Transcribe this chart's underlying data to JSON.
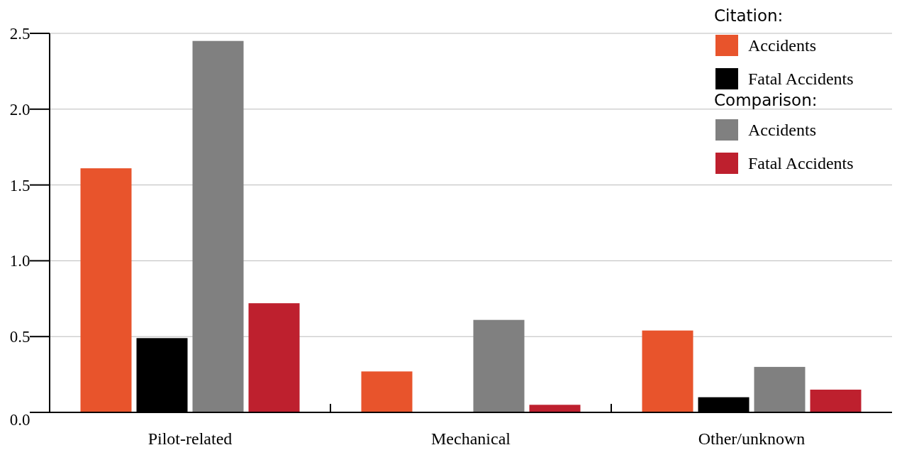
{
  "chart_data": {
    "type": "bar",
    "categories": [
      "Pilot-related",
      "Mechanical",
      "Other/unknown"
    ],
    "series": [
      {
        "name": "Accidents",
        "color": "#e8542c",
        "values": [
          1.61,
          0.27,
          0.54
        ]
      },
      {
        "name": "Fatal Accidents",
        "color": "#000000",
        "values": [
          0.49,
          0,
          0.1
        ]
      },
      {
        "name": "Accidents",
        "color": "#808080",
        "values": [
          2.45,
          0.61,
          0.3
        ]
      },
      {
        "name": "Fatal Accidents",
        "color": "#be202e",
        "values": [
          0.72,
          0.05,
          0.15
        ]
      }
    ],
    "annotations": [
      "Citation:",
      "Comparison:"
    ],
    "ylim": [
      0,
      2.5
    ],
    "yticks": [
      {
        "value": 0,
        "label": "0.0"
      },
      {
        "value": 0.5,
        "label": "0.5"
      },
      {
        "value": 1,
        "label": "1.0"
      },
      {
        "value": 1.5,
        "label": "1.5"
      },
      {
        "value": 2,
        "label": "2.0"
      },
      {
        "value": 2.5,
        "label": "2.5"
      }
    ],
    "grid": "y",
    "legend": "top right"
  }
}
